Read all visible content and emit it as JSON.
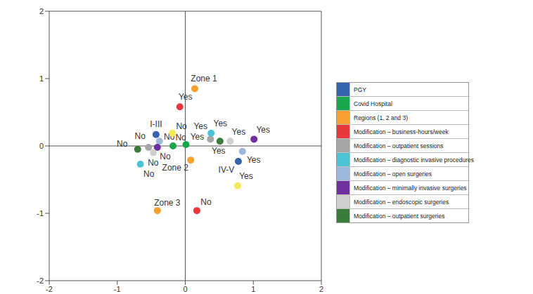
{
  "chart_data": {
    "type": "scatter",
    "xlim": [
      -2,
      2
    ],
    "ylim": [
      -2,
      2
    ],
    "xticks": [
      -2,
      -1,
      0,
      1,
      2
    ],
    "yticks": [
      -2,
      -1,
      0,
      1,
      2
    ],
    "grid": false,
    "legend": "right",
    "series": [
      {
        "name": "PGY",
        "color": "#3563ad",
        "x": [
          -0.43,
          0.78
        ],
        "y": [
          0.17,
          -0.23
        ],
        "labels": [
          "I-III",
          "IV-V"
        ]
      },
      {
        "name": "Covid Hospital",
        "color": "#1aa64b",
        "x": [
          -0.18,
          0.01
        ],
        "y": [
          0.0,
          0.02
        ],
        "labels": [
          "No",
          "Yes"
        ]
      },
      {
        "name": "Regions (1, 2 and 3)",
        "color": "#f7a030",
        "x": [
          0.14,
          0.08,
          -0.41
        ],
        "y": [
          0.85,
          -0.21,
          -0.96
        ],
        "labels": [
          "Zone 1",
          "Zone 2",
          "Zone 3"
        ]
      },
      {
        "name": "Modification – business-hours/week",
        "color": "#e8383d",
        "x": [
          -0.08,
          0.17
        ],
        "y": [
          0.58,
          -0.96
        ],
        "labels": [
          "Yes",
          "No"
        ]
      },
      {
        "name": "Modification – outpatient sessions",
        "color": "#a6a6a6",
        "x": [
          0.37,
          -0.54
        ],
        "y": [
          0.1,
          -0.02
        ],
        "labels": [
          "Yes",
          "No"
        ]
      },
      {
        "name": "Modification – diagnostic invasive procedures",
        "color": "#4cc3d4",
        "x": [
          0.38,
          -0.66
        ],
        "y": [
          0.19,
          -0.27
        ],
        "labels": [
          "Yes",
          "No"
        ]
      },
      {
        "name": "Modification – open surgeries",
        "color": "#9db8dc",
        "x": [
          0.84,
          -0.38
        ],
        "y": [
          -0.08,
          0.07
        ],
        "labels": [
          "Yes",
          "No"
        ]
      },
      {
        "name": "Modification – minimally invasive surgeries",
        "color": "#7030a0",
        "x": [
          1.01,
          -0.41
        ],
        "y": [
          0.1,
          -0.02
        ],
        "labels": [
          "Yes",
          "No"
        ]
      },
      {
        "name": "Modification – endoscopic surgeries",
        "color": "#d0d0d0",
        "x": [
          0.66,
          -0.47
        ],
        "y": [
          0.07,
          -0.1
        ],
        "labels": [
          "Yes",
          "No"
        ]
      },
      {
        "name": "Modification – outpatient surgeries",
        "color": "#3a7d3a",
        "x": [
          0.51,
          -0.7
        ],
        "y": [
          0.07,
          -0.05
        ],
        "labels": [
          "Yes",
          "No"
        ]
      },
      {
        "color": "#f5e85a",
        "x": [
          -0.19,
          0.77
        ],
        "y": [
          0.19,
          -0.59
        ],
        "labels": [
          "No",
          "Yes"
        ]
      }
    ]
  }
}
